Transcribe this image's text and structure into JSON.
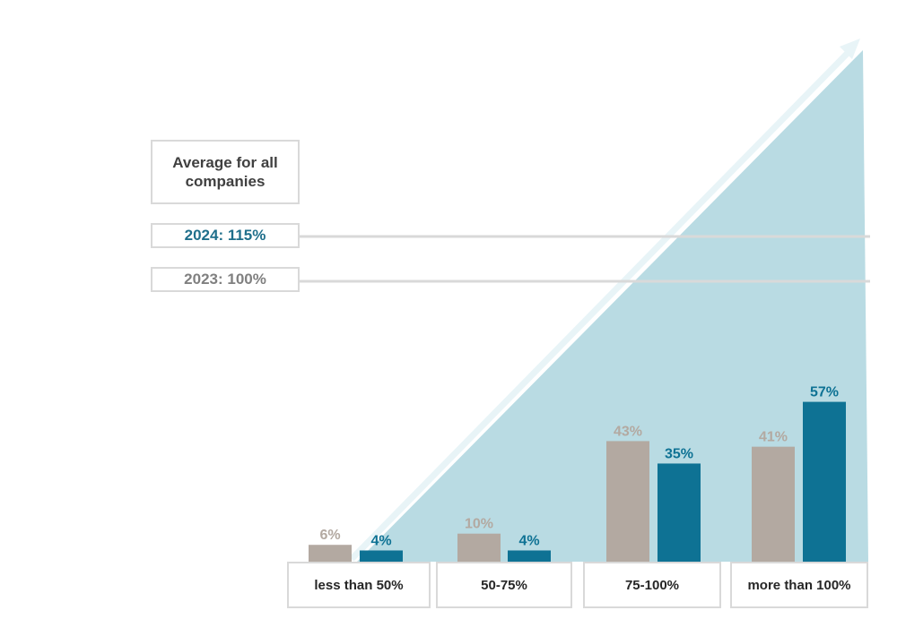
{
  "legend": {
    "title": "Average for all companies",
    "year_2024": "2024: 115%",
    "year_2023": "2023: 100%"
  },
  "colors": {
    "y2023": "#b3a9a1",
    "y2024": "#0e7294",
    "wedge": "#b9dbe3",
    "arrow": "#e8f4f7",
    "ref_line": "#d9d9d9"
  },
  "chart_data": {
    "type": "bar",
    "categories": [
      "less than 50%",
      "50-75%",
      "75-100%",
      "more than 100%"
    ],
    "series": [
      {
        "name": "2023",
        "values": [
          6,
          10,
          43,
          41
        ],
        "labels": [
          "6%",
          "10%",
          "43%",
          "41%"
        ]
      },
      {
        "name": "2024",
        "values": [
          4,
          4,
          35,
          57
        ],
        "labels": [
          "4%",
          "4%",
          "35%",
          "57%"
        ]
      }
    ],
    "reference_lines": [
      {
        "label": "2024: 115%",
        "value": 115
      },
      {
        "label": "2023: 100%",
        "value": 100
      }
    ],
    "legend": "left",
    "grid": false
  }
}
